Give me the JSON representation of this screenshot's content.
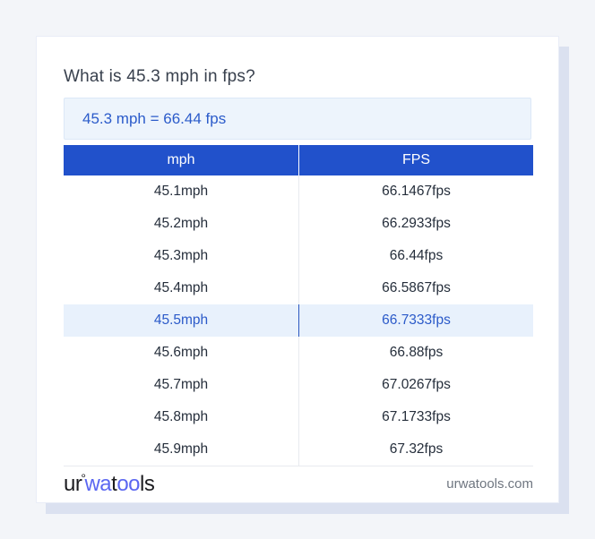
{
  "title": "What is 45.3 mph in fps?",
  "result": "45.3 mph = 66.44 fps",
  "table": {
    "headers": [
      "mph",
      "FPS"
    ],
    "rows": [
      {
        "mph": "45.1mph",
        "fps": "66.1467fps",
        "highlight": false
      },
      {
        "mph": "45.2mph",
        "fps": "66.2933fps",
        "highlight": false
      },
      {
        "mph": "45.3mph",
        "fps": "66.44fps",
        "highlight": false
      },
      {
        "mph": "45.4mph",
        "fps": "66.5867fps",
        "highlight": false
      },
      {
        "mph": "45.5mph",
        "fps": "66.7333fps",
        "highlight": true
      },
      {
        "mph": "45.6mph",
        "fps": "66.88fps",
        "highlight": false
      },
      {
        "mph": "45.7mph",
        "fps": "67.0267fps",
        "highlight": false
      },
      {
        "mph": "45.8mph",
        "fps": "67.1733fps",
        "highlight": false
      },
      {
        "mph": "45.9mph",
        "fps": "67.32fps",
        "highlight": false
      }
    ]
  },
  "footer": {
    "logo_parts": [
      {
        "text": "ur",
        "style": "dark"
      },
      {
        "text": "°",
        "style": "ring"
      },
      {
        "text": "wa",
        "style": "blue"
      },
      {
        "text": "t",
        "style": "dark"
      },
      {
        "text": "oo",
        "style": "blue"
      },
      {
        "text": "ls",
        "style": "dark"
      }
    ],
    "site": "urwatools.com"
  },
  "colors": {
    "page_background": "#f3f5f9",
    "card_background": "#ffffff",
    "card_shadow": "#dbe1f0",
    "header_blue": "#2151cb",
    "result_box_background": "#edf4fc",
    "result_text_blue": "#2b5bca",
    "highlight_row_background": "#e8f1fc",
    "highlight_text_blue": "#2b5ac9",
    "cell_text": "#252e3b",
    "logo_blue": "#5b67f1",
    "url_gray": "#6f7680"
  }
}
